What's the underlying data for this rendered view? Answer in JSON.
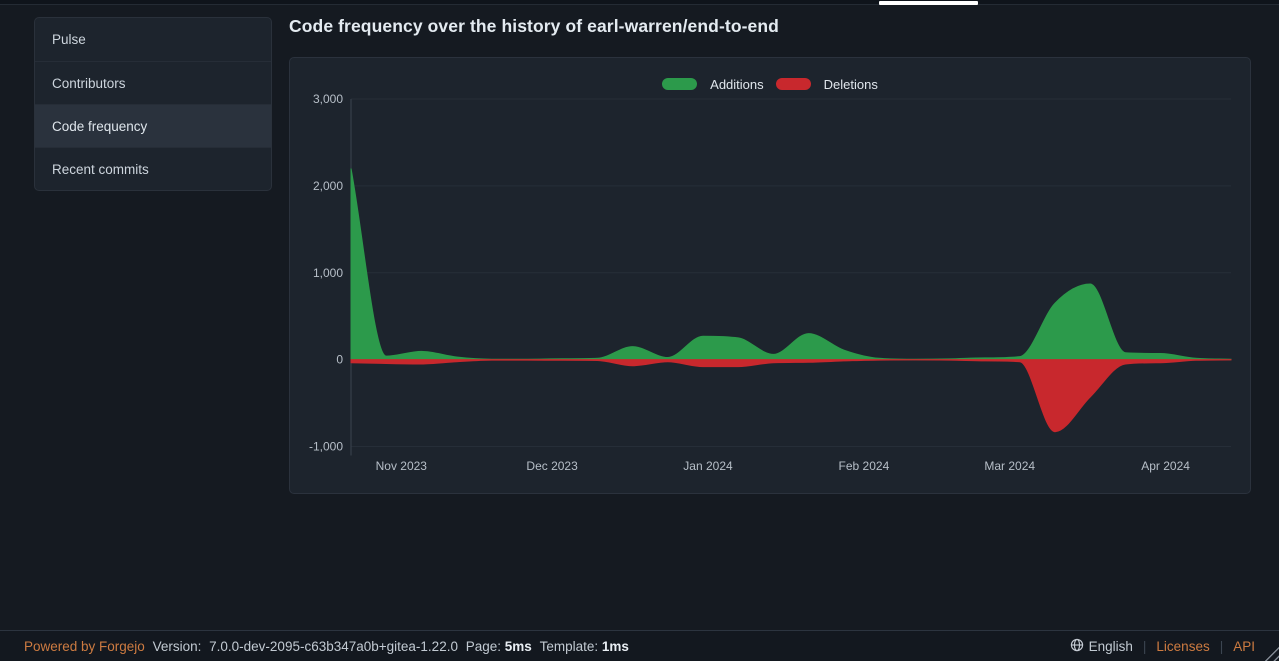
{
  "topbar": {
    "active_tab_underline": true
  },
  "sidebar": {
    "items": [
      {
        "label": "Pulse",
        "active": false
      },
      {
        "label": "Contributors",
        "active": false
      },
      {
        "label": "Code frequency",
        "active": true
      },
      {
        "label": "Recent commits",
        "active": false
      }
    ]
  },
  "main": {
    "title": "Code frequency over the history of earl-warren/end-to-end"
  },
  "chart_data": {
    "type": "area",
    "title": "Code frequency",
    "grid": true,
    "legend_position": "top-center",
    "ylim": [
      -1000,
      3000
    ],
    "x_domain": [
      "2023-10-22",
      "2024-04-14"
    ],
    "x": [
      "2023-10-22",
      "2023-10-29",
      "2023-11-05",
      "2023-11-12",
      "2023-11-19",
      "2023-11-26",
      "2023-12-03",
      "2023-12-10",
      "2023-12-17",
      "2023-12-24",
      "2023-12-31",
      "2024-01-07",
      "2024-01-14",
      "2024-01-21",
      "2024-01-28",
      "2024-02-04",
      "2024-02-11",
      "2024-02-18",
      "2024-02-25",
      "2024-03-03",
      "2024-03-10",
      "2024-03-17",
      "2024-03-24",
      "2024-03-31",
      "2024-04-07",
      "2024-04-14"
    ],
    "series": [
      {
        "name": "Additions",
        "color": "#2c9a4b",
        "values": [
          2200,
          40,
          95,
          30,
          5,
          5,
          10,
          15,
          150,
          25,
          270,
          250,
          60,
          300,
          110,
          15,
          5,
          8,
          20,
          35,
          650,
          870,
          80,
          70,
          15,
          5
        ]
      },
      {
        "name": "Deletions",
        "color": "#c8282d",
        "values": [
          -35,
          -45,
          -50,
          -25,
          -5,
          -5,
          -8,
          -10,
          -70,
          -25,
          -80,
          -80,
          -35,
          -30,
          -15,
          -5,
          -3,
          -5,
          -15,
          -25,
          -830,
          -430,
          -50,
          -35,
          -8,
          -3
        ]
      }
    ],
    "yticks": [
      {
        "value": 3000,
        "label": "3,000"
      },
      {
        "value": 2000,
        "label": "2,000"
      },
      {
        "value": 1000,
        "label": "1,000"
      },
      {
        "value": 0,
        "label": "0"
      },
      {
        "value": -1000,
        "label": "-1,000"
      }
    ],
    "xticks": [
      {
        "date": "2023-11-01",
        "label": "Nov 2023"
      },
      {
        "date": "2023-12-01",
        "label": "Dec 2023"
      },
      {
        "date": "2024-01-01",
        "label": "Jan 2024"
      },
      {
        "date": "2024-02-01",
        "label": "Feb 2024"
      },
      {
        "date": "2024-03-01",
        "label": "Mar 2024"
      },
      {
        "date": "2024-04-01",
        "label": "Apr 2024"
      }
    ],
    "colors": {
      "zero_line": "#6f7b87",
      "gridline": "#262e38",
      "axis_line": "#3a434e",
      "tick_text": "#b7bfc8"
    }
  },
  "footer": {
    "powered": "Powered by Forgejo",
    "version_label": "Version:",
    "version_value": "7.0.0-dev-2095-c63b347a0b+gitea-1.22.0",
    "page_label": "Page:",
    "page_value": "5ms",
    "template_label": "Template:",
    "template_value": "1ms",
    "language": "English",
    "licenses": "Licenses",
    "api": "API"
  }
}
